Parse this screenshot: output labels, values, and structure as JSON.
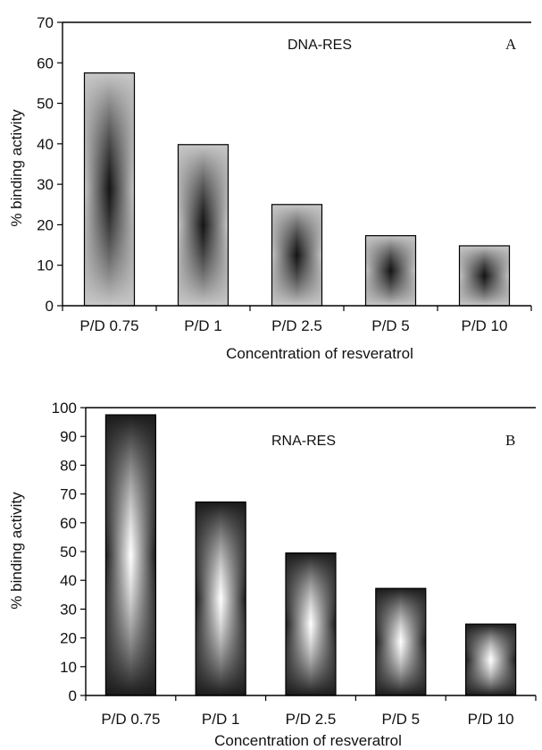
{
  "chart_data": [
    {
      "type": "bar",
      "panel_label": "A",
      "annotation": "DNA-RES",
      "categories": [
        "P/D 0.75",
        "P/D 1",
        "P/D 2.5",
        "P/D 5",
        "P/D 10"
      ],
      "values": [
        57.5,
        39.8,
        25,
        17.3,
        14.8
      ],
      "xlabel": "Concentration of resveratrol",
      "ylabel": "% binding activity",
      "ylim": [
        0,
        70
      ],
      "yticks": [
        0,
        10,
        20,
        30,
        40,
        50,
        60,
        70
      ],
      "grid": false,
      "fill_style": "dark-center",
      "bar_colors": {
        "edge": "#c8c8c8",
        "mid": "#7a7a7a",
        "center": "#141414"
      }
    },
    {
      "type": "bar",
      "panel_label": "B",
      "annotation": "RNA-RES",
      "categories": [
        "P/D 0.75",
        "P/D 1",
        "P/D 2.5",
        "P/D 5",
        "P/D 10"
      ],
      "values": [
        97.5,
        67.2,
        49.5,
        37.2,
        24.8
      ],
      "xlabel": "Concentration of resveratrol",
      "ylabel": "% binding activity",
      "ylim": [
        0,
        100
      ],
      "yticks": [
        0,
        10,
        20,
        30,
        40,
        50,
        60,
        70,
        80,
        90,
        100
      ],
      "grid": false,
      "fill_style": "light-center",
      "bar_colors": {
        "edge": "#1a1a1a",
        "mid": "#8a8a8a",
        "center": "#ffffff"
      }
    }
  ]
}
